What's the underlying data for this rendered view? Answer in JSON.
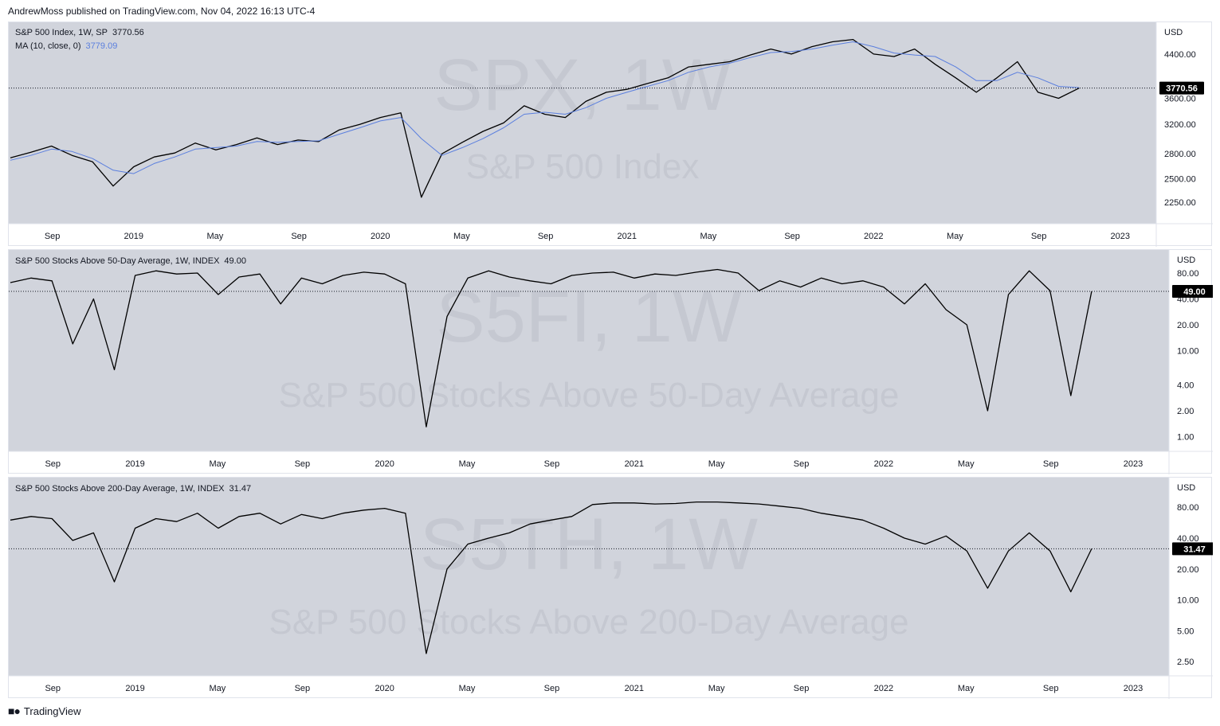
{
  "header": {
    "published_by": "AndrewMoss published on TradingView.com, Nov 04, 2022 16:13 UTC-4"
  },
  "footer": {
    "brand": "TradingView"
  },
  "x_axis_labels": [
    "Sep",
    "2019",
    "May",
    "Sep",
    "2020",
    "May",
    "Sep",
    "2021",
    "May",
    "Sep",
    "2022",
    "May",
    "Sep",
    "2023"
  ],
  "colors": {
    "pane_bg": "#d1d4dc",
    "price_line": "#000000",
    "ma_line": "#5b7fde",
    "label_bg": "#000000"
  },
  "panels": [
    {
      "legend": "S&P 500 Index, 1W, SP",
      "legend_value": "3770.56",
      "ma_legend": "MA (10, close, 0)",
      "ma_value": "3779.09",
      "watermark_symbol": "SPX, 1W",
      "watermark_name": "S&P 500 Index",
      "currency": "USD",
      "y_ticks": [
        "4400.00",
        "3600.00",
        "3200.00",
        "2800.00",
        "2500.00",
        "2250.00"
      ],
      "last_label": "3770.56"
    },
    {
      "legend": "S&P 500 Stocks Above 50-Day Average, 1W, INDEX",
      "legend_value": "49.00",
      "watermark_symbol": "S5FI, 1W",
      "watermark_name": "S&P 500 Stocks Above 50-Day Average",
      "currency": "USD",
      "y_ticks": [
        "80.00",
        "40.00",
        "20.00",
        "10.00",
        "4.00",
        "2.00",
        "1.00"
      ],
      "last_label": "49.00"
    },
    {
      "legend": "S&P 500 Stocks Above 200-Day Average, 1W, INDEX",
      "legend_value": "31.47",
      "watermark_symbol": "S5TH, 1W",
      "watermark_name": "S&P 500 Stocks Above 200-Day Average",
      "currency": "USD",
      "y_ticks": [
        "80.00",
        "40.00",
        "20.00",
        "10.00",
        "5.00",
        "2.50"
      ],
      "last_label": "31.47"
    }
  ],
  "chart_data": [
    {
      "type": "line",
      "title": "S&P 500 Index, 1W, SP",
      "x": [
        "2018-07",
        "2018-08",
        "2018-09",
        "2018-10",
        "2018-11",
        "2018-12",
        "2019-01",
        "2019-02",
        "2019-03",
        "2019-04",
        "2019-05",
        "2019-06",
        "2019-07",
        "2019-08",
        "2019-09",
        "2019-10",
        "2019-11",
        "2019-12",
        "2020-01",
        "2020-02",
        "2020-03",
        "2020-04",
        "2020-05",
        "2020-06",
        "2020-07",
        "2020-08",
        "2020-09",
        "2020-10",
        "2020-11",
        "2020-12",
        "2021-01",
        "2021-02",
        "2021-03",
        "2021-04",
        "2021-05",
        "2021-06",
        "2021-07",
        "2021-08",
        "2021-09",
        "2021-10",
        "2021-11",
        "2021-12",
        "2022-01",
        "2022-02",
        "2022-03",
        "2022-04",
        "2022-05",
        "2022-06",
        "2022-07",
        "2022-08",
        "2022-09",
        "2022-10",
        "2022-11"
      ],
      "series": [
        {
          "values": [
            2750,
            2820,
            2900,
            2780,
            2700,
            2420,
            2640,
            2760,
            2810,
            2940,
            2850,
            2920,
            3010,
            2920,
            2980,
            2960,
            3120,
            3200,
            3300,
            3370,
            2300,
            2800,
            2950,
            3100,
            3220,
            3480,
            3350,
            3300,
            3550,
            3700,
            3750,
            3850,
            3950,
            4150,
            4200,
            4250,
            4380,
            4500,
            4400,
            4550,
            4650,
            4700,
            4400,
            4350,
            4500,
            4200,
            3950,
            3700,
            3950,
            4250,
            3700,
            3600,
            3770
          ]
        },
        {
          "values": [
            2720,
            2780,
            2860,
            2830,
            2740,
            2600,
            2560,
            2680,
            2760,
            2860,
            2880,
            2900,
            2960,
            2950,
            2960,
            2970,
            3060,
            3150,
            3250,
            3300,
            3000,
            2780,
            2880,
            3000,
            3150,
            3350,
            3380,
            3350,
            3450,
            3600,
            3700,
            3800,
            3900,
            4050,
            4150,
            4220,
            4330,
            4430,
            4450,
            4500,
            4580,
            4650,
            4550,
            4420,
            4380,
            4350,
            4150,
            3900,
            3900,
            4050,
            3950,
            3800,
            3779
          ]
        }
      ],
      "y_scale": "log",
      "ylim": [
        2100,
        4900
      ]
    },
    {
      "type": "line",
      "title": "S&P 500 Stocks Above 50-Day Average, 1W, INDEX",
      "x": [
        "2018-07",
        "2018-08",
        "2018-09",
        "2018-10",
        "2018-11",
        "2018-12",
        "2019-01",
        "2019-02",
        "2019-03",
        "2019-04",
        "2019-05",
        "2019-06",
        "2019-07",
        "2019-08",
        "2019-09",
        "2019-10",
        "2019-11",
        "2019-12",
        "2020-01",
        "2020-02",
        "2020-03",
        "2020-04",
        "2020-05",
        "2020-06",
        "2020-07",
        "2020-08",
        "2020-09",
        "2020-10",
        "2020-11",
        "2020-12",
        "2021-01",
        "2021-02",
        "2021-03",
        "2021-04",
        "2021-05",
        "2021-06",
        "2021-07",
        "2021-08",
        "2021-09",
        "2021-10",
        "2021-11",
        "2021-12",
        "2022-01",
        "2022-02",
        "2022-03",
        "2022-04",
        "2022-05",
        "2022-06",
        "2022-07",
        "2022-08",
        "2022-09",
        "2022-10",
        "2022-11"
      ],
      "series": [
        {
          "values": [
            62,
            70,
            65,
            12,
            40,
            6,
            75,
            85,
            78,
            80,
            45,
            72,
            78,
            35,
            70,
            60,
            75,
            82,
            78,
            60,
            1.3,
            25,
            70,
            85,
            72,
            65,
            60,
            75,
            80,
            82,
            70,
            78,
            75,
            82,
            88,
            80,
            50,
            65,
            55,
            70,
            60,
            65,
            55,
            35,
            60,
            30,
            20,
            2,
            45,
            85,
            50,
            3,
            49
          ]
        }
      ],
      "y_scale": "log",
      "ylim": [
        0.8,
        120
      ]
    },
    {
      "type": "line",
      "title": "S&P 500 Stocks Above 200-Day Average, 1W, INDEX",
      "x": [
        "2018-07",
        "2018-08",
        "2018-09",
        "2018-10",
        "2018-11",
        "2018-12",
        "2019-01",
        "2019-02",
        "2019-03",
        "2019-04",
        "2019-05",
        "2019-06",
        "2019-07",
        "2019-08",
        "2019-09",
        "2019-10",
        "2019-11",
        "2019-12",
        "2020-01",
        "2020-02",
        "2020-03",
        "2020-04",
        "2020-05",
        "2020-06",
        "2020-07",
        "2020-08",
        "2020-09",
        "2020-10",
        "2020-11",
        "2020-12",
        "2021-01",
        "2021-02",
        "2021-03",
        "2021-04",
        "2021-05",
        "2021-06",
        "2021-07",
        "2021-08",
        "2021-09",
        "2021-10",
        "2021-11",
        "2021-12",
        "2022-01",
        "2022-02",
        "2022-03",
        "2022-04",
        "2022-05",
        "2022-06",
        "2022-07",
        "2022-08",
        "2022-09",
        "2022-10",
        "2022-11"
      ],
      "series": [
        {
          "values": [
            60,
            65,
            62,
            38,
            45,
            15,
            50,
            62,
            58,
            70,
            50,
            65,
            70,
            55,
            68,
            62,
            70,
            75,
            78,
            70,
            3,
            20,
            35,
            40,
            45,
            55,
            60,
            65,
            85,
            88,
            88,
            86,
            87,
            90,
            90,
            88,
            86,
            82,
            78,
            70,
            65,
            60,
            50,
            40,
            35,
            42,
            30,
            13,
            30,
            45,
            30,
            12,
            31.47
          ]
        }
      ],
      "y_scale": "log",
      "ylim": [
        2.1,
        130
      ]
    }
  ]
}
